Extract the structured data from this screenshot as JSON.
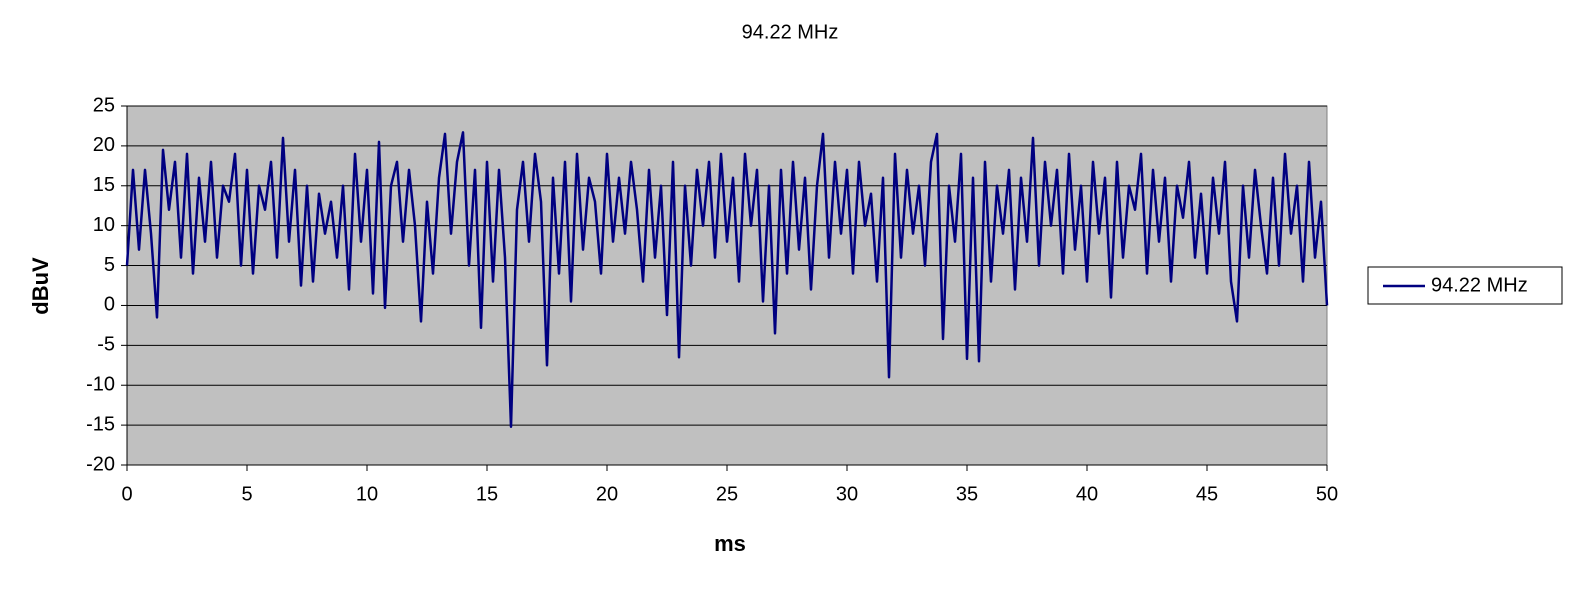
{
  "chart_data": {
    "type": "line",
    "title": "94.22 MHz",
    "xlabel": "ms",
    "ylabel": "dBuV",
    "x": [
      0,
      0.25,
      0.5,
      0.75,
      1,
      1.25,
      1.5,
      1.75,
      2,
      2.25,
      2.5,
      2.75,
      3,
      3.25,
      3.5,
      3.75,
      4,
      4.25,
      4.5,
      4.75,
      5,
      5.25,
      5.5,
      5.75,
      6,
      6.25,
      6.5,
      6.75,
      7,
      7.25,
      7.5,
      7.75,
      8,
      8.25,
      8.5,
      8.75,
      9,
      9.25,
      9.5,
      9.75,
      10,
      10.25,
      10.5,
      10.75,
      11,
      11.25,
      11.5,
      11.75,
      12,
      12.25,
      12.5,
      12.75,
      13,
      13.25,
      13.5,
      13.75,
      14,
      14.25,
      14.5,
      14.75,
      15,
      15.25,
      15.5,
      15.75,
      16,
      16.25,
      16.5,
      16.75,
      17,
      17.25,
      17.5,
      17.75,
      18,
      18.25,
      18.5,
      18.75,
      19,
      19.25,
      19.5,
      19.75,
      20,
      20.25,
      20.5,
      20.75,
      21,
      21.25,
      21.5,
      21.75,
      22,
      22.25,
      22.5,
      22.75,
      23,
      23.25,
      23.5,
      23.75,
      24,
      24.25,
      24.5,
      24.75,
      25,
      25.25,
      25.5,
      25.75,
      26,
      26.25,
      26.5,
      26.75,
      27,
      27.25,
      27.5,
      27.75,
      28,
      28.25,
      28.5,
      28.75,
      29,
      29.25,
      29.5,
      29.75,
      30,
      30.25,
      30.5,
      30.75,
      31,
      31.25,
      31.5,
      31.75,
      32,
      32.25,
      32.5,
      32.75,
      33,
      33.25,
      33.5,
      33.75,
      34,
      34.25,
      34.5,
      34.75,
      35,
      35.25,
      35.5,
      35.75,
      36,
      36.25,
      36.5,
      36.75,
      37,
      37.25,
      37.5,
      37.75,
      38,
      38.25,
      38.5,
      38.75,
      39,
      39.25,
      39.5,
      39.75,
      40,
      40.25,
      40.5,
      40.75,
      41,
      41.25,
      41.5,
      41.75,
      42,
      42.25,
      42.5,
      42.75,
      43,
      43.25,
      43.5,
      43.75,
      44,
      44.25,
      44.5,
      44.75,
      45,
      45.25,
      45.5,
      45.75,
      46,
      46.25,
      46.5,
      46.75,
      47,
      47.25,
      47.5,
      47.75,
      48,
      48.25,
      48.5,
      48.75,
      49,
      49.25,
      49.5,
      49.75,
      50
    ],
    "series": [
      {
        "name": "94.22 MHz",
        "color": "#000080",
        "values": [
          5,
          17,
          7,
          17,
          9,
          -1.5,
          19.5,
          12,
          18,
          6,
          19,
          4,
          16,
          8,
          18,
          6,
          15,
          13,
          19,
          5,
          17,
          4,
          15,
          12,
          18,
          6,
          21,
          8,
          17,
          2.5,
          15,
          3,
          14,
          9,
          13,
          6,
          15,
          2,
          19,
          8,
          17,
          1.5,
          20.5,
          -0.3,
          15,
          18,
          8,
          17,
          10,
          -2,
          13,
          4,
          16,
          21.5,
          9,
          18,
          21.7,
          5,
          17,
          -2.8,
          18,
          3,
          17,
          6,
          -15.2,
          12,
          18,
          8,
          19,
          13,
          -7.5,
          16,
          4,
          18,
          0.5,
          19,
          7,
          16,
          13,
          4,
          19,
          8,
          16,
          9,
          18,
          12,
          3,
          17,
          6,
          15,
          -1.2,
          18,
          -6.5,
          15,
          5,
          17,
          10,
          18,
          6,
          19,
          8,
          16,
          3,
          19,
          10,
          17,
          0.5,
          15,
          -3.5,
          17,
          4,
          18,
          7,
          16,
          2,
          15,
          21.5,
          6,
          18,
          9,
          17,
          4,
          18,
          10,
          14,
          3,
          16,
          -9,
          19,
          6,
          17,
          9,
          15,
          5,
          18,
          21.5,
          -4.2,
          15,
          8,
          19,
          -6.7,
          16,
          -7,
          18,
          3,
          15,
          9,
          17,
          2,
          16,
          8,
          21,
          5,
          18,
          10,
          17,
          4,
          19,
          7,
          15,
          3,
          18,
          9,
          16,
          1,
          18,
          6,
          15,
          12,
          19,
          4,
          17,
          8,
          16,
          3,
          15,
          11,
          18,
          6,
          14,
          4,
          16,
          9,
          18,
          3,
          -2,
          15,
          6,
          17,
          10,
          4,
          16,
          5,
          19,
          9,
          15,
          3,
          18,
          6,
          13,
          0
        ]
      }
    ],
    "xlim": [
      0,
      50
    ],
    "xticks": [
      0,
      5,
      10,
      15,
      20,
      25,
      30,
      35,
      40,
      45,
      50
    ],
    "ylim": [
      -20,
      25
    ],
    "yticks": [
      -20,
      -15,
      -10,
      -5,
      0,
      5,
      10,
      15,
      20,
      25
    ],
    "grid": true,
    "legend": "right",
    "background": "#c0c0c0"
  }
}
